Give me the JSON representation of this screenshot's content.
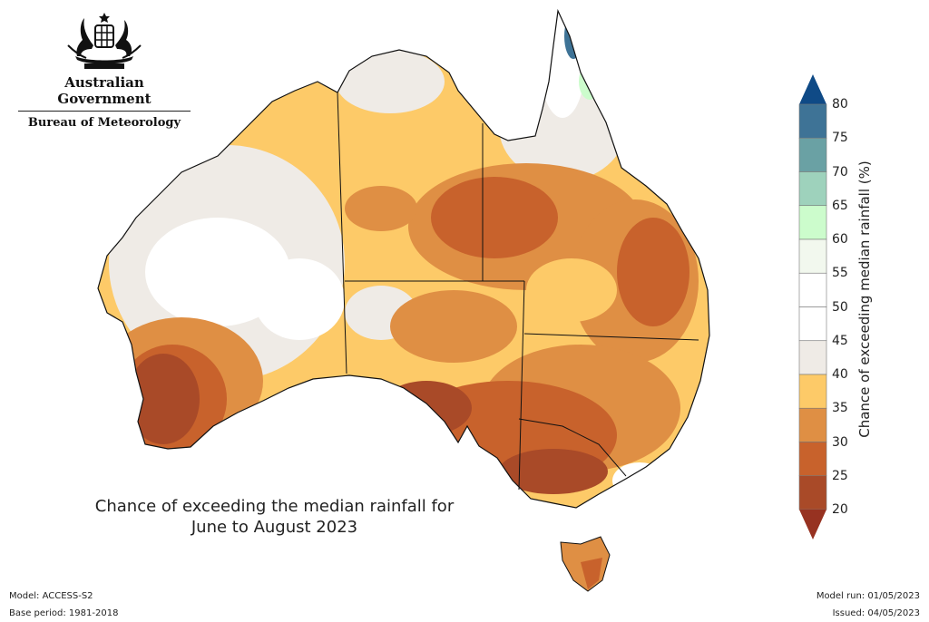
{
  "logo": {
    "government": "Australian Government",
    "bureau": "Bureau of Meteorology"
  },
  "title": {
    "line1": "Chance of exceeding the median rainfall for",
    "line2": "June to August 2023"
  },
  "footer": {
    "model": "Model: ACCESS-S2",
    "base_period": "Base period: 1981-2018",
    "model_run": "Model run: 01/05/2023",
    "issued": "Issued: 04/05/2023"
  },
  "colorbar": {
    "label": "Chance of exceeding median rainfall (%)",
    "ticks": [
      "80",
      "75",
      "70",
      "65",
      "60",
      "55",
      "50",
      "45",
      "40",
      "35",
      "30",
      "25",
      "20"
    ],
    "colors": {
      "above80": "#0f4a86",
      "75-80": "#3e7396",
      "70-75": "#6aa1a4",
      "65-70": "#9ed2bc",
      "60-65": "#ccfccc",
      "55-60": "#f2f8ee",
      "50-55": "#ffffff",
      "45-50": "#ffffff",
      "40-45": "#efebe6",
      "35-40": "#fdca68",
      "30-35": "#df8f44",
      "25-30": "#c8622c",
      "20-25": "#a94a28",
      "below20": "#973221"
    }
  }
}
